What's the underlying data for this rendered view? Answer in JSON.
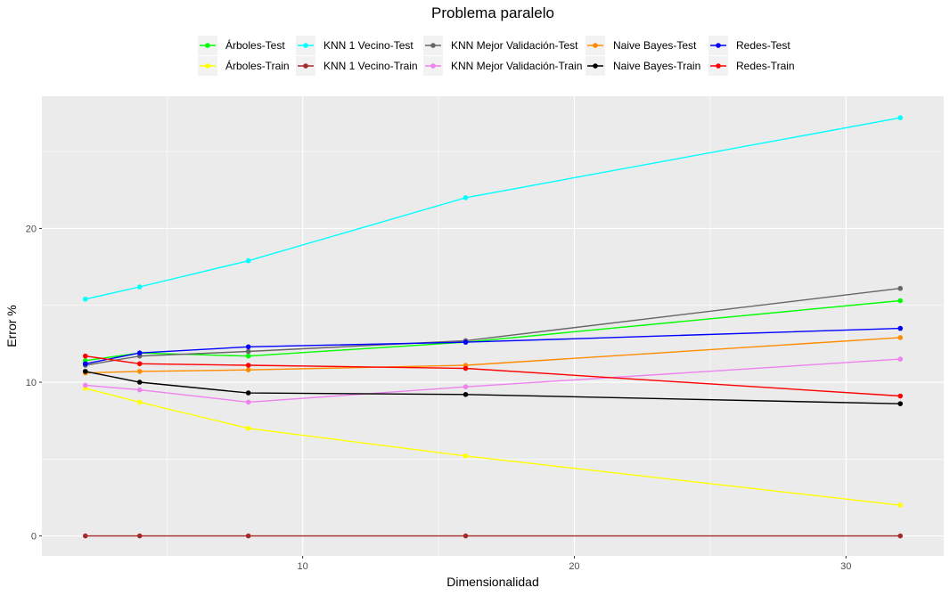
{
  "chart_data": {
    "type": "line",
    "title": "Problema paralelo",
    "xlabel": "Dimensionalidad",
    "ylabel": "Error %",
    "x": [
      2,
      4,
      8,
      16,
      32
    ],
    "xlim": [
      0.4,
      33.6
    ],
    "ylim": [
      -1.3,
      28.6
    ],
    "xticks": [
      10,
      20,
      30
    ],
    "yticks": [
      0,
      10,
      20
    ],
    "grid": true,
    "legend_position": "top",
    "series": [
      {
        "name": "Árboles-Test",
        "color": "#00ff00",
        "values": [
          11.4,
          11.9,
          11.7,
          12.6,
          15.3
        ]
      },
      {
        "name": "Árboles-Train",
        "color": "#ffff00",
        "values": [
          9.6,
          8.7,
          7.0,
          5.2,
          2.0
        ]
      },
      {
        "name": "KNN 1 Vecino-Test",
        "color": "#00ffff",
        "values": [
          15.4,
          16.2,
          17.9,
          22.0,
          27.2
        ]
      },
      {
        "name": "KNN 1 Vecino-Train",
        "color": "#a52a2a",
        "values": [
          0.0,
          0.0,
          0.0,
          0.0,
          0.0
        ]
      },
      {
        "name": "KNN Mejor Validación-Test",
        "color": "#666666",
        "values": [
          11.1,
          11.7,
          12.0,
          12.7,
          16.1
        ]
      },
      {
        "name": "KNN Mejor Validación-Train",
        "color": "#ee82ee",
        "values": [
          9.8,
          9.5,
          8.7,
          9.7,
          11.5
        ]
      },
      {
        "name": "Naive Bayes-Test",
        "color": "#ff8c00",
        "values": [
          10.6,
          10.7,
          10.8,
          11.1,
          12.9
        ]
      },
      {
        "name": "Naive Bayes-Train",
        "color": "#000000",
        "values": [
          10.7,
          10.0,
          9.3,
          9.2,
          8.6
        ]
      },
      {
        "name": "Redes-Test",
        "color": "#0000ff",
        "values": [
          11.2,
          11.9,
          12.3,
          12.6,
          13.5
        ]
      },
      {
        "name": "Redes-Train",
        "color": "#ff0000",
        "values": [
          11.7,
          11.2,
          11.1,
          10.9,
          9.1
        ]
      }
    ]
  }
}
